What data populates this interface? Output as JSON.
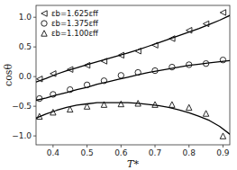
{
  "chart_data": {
    "type": "scatter",
    "xlabel": "T*",
    "ylabel": "cosθ",
    "xlim": [
      0.35,
      0.92
    ],
    "ylim": [
      -1.15,
      1.2
    ],
    "xticks": [
      0.4,
      0.5,
      0.6,
      0.7,
      0.8,
      0.9
    ],
    "yticks": [
      {
        "value": -1.0,
        "label": "−1.0"
      },
      {
        "value": -0.5,
        "label": "−0.5"
      },
      {
        "value": 0.0,
        "label": "0.0"
      },
      0.5,
      {
        "value": 1.0,
        "label": "1.0"
      }
    ],
    "grid": false,
    "legend": "upper left",
    "series": [
      {
        "name": "εb=1.625εff",
        "type": "scatter",
        "marker": "triangle-left",
        "color": "#111111",
        "x": [
          0.36,
          0.4,
          0.45,
          0.5,
          0.55,
          0.6,
          0.65,
          0.7,
          0.75,
          0.8,
          0.85,
          0.9
        ],
        "values": [
          -0.04,
          0.05,
          0.12,
          0.19,
          0.26,
          0.36,
          0.43,
          0.53,
          0.64,
          0.78,
          0.89,
          1.08
        ]
      },
      {
        "name": "εb=1.375εff",
        "type": "scatter",
        "marker": "circle",
        "color": "#111111",
        "x": [
          0.36,
          0.4,
          0.45,
          0.5,
          0.55,
          0.6,
          0.65,
          0.7,
          0.75,
          0.8,
          0.85,
          0.9
        ],
        "values": [
          -0.37,
          -0.3,
          -0.22,
          -0.14,
          -0.07,
          0.02,
          0.07,
          0.1,
          0.16,
          0.2,
          0.22,
          0.28
        ]
      },
      {
        "name": "εb=1.100εff",
        "type": "scatter",
        "marker": "triangle-up",
        "color": "#111111",
        "x": [
          0.36,
          0.4,
          0.45,
          0.5,
          0.55,
          0.6,
          0.65,
          0.7,
          0.75,
          0.8,
          0.85,
          0.9
        ],
        "values": [
          -0.67,
          -0.6,
          -0.55,
          -0.5,
          -0.47,
          -0.46,
          -0.45,
          -0.47,
          -0.47,
          -0.52,
          -0.62,
          -1.0
        ]
      },
      {
        "type": "line",
        "color": "#000000",
        "x": [
          0.35,
          0.38,
          0.41,
          0.44,
          0.47,
          0.5,
          0.53,
          0.56,
          0.59,
          0.62,
          0.65,
          0.68,
          0.71,
          0.74,
          0.77,
          0.8,
          0.83,
          0.86,
          0.89,
          0.92
        ],
        "values": [
          -0.09,
          -0.03,
          0.04,
          0.1,
          0.15,
          0.2,
          0.25,
          0.3,
          0.35,
          0.4,
          0.45,
          0.51,
          0.57,
          0.63,
          0.69,
          0.75,
          0.81,
          0.88,
          0.95,
          1.03
        ]
      },
      {
        "type": "line",
        "color": "#000000",
        "x": [
          0.35,
          0.38,
          0.41,
          0.44,
          0.47,
          0.5,
          0.53,
          0.56,
          0.59,
          0.62,
          0.65,
          0.68,
          0.71,
          0.74,
          0.77,
          0.8,
          0.83,
          0.86,
          0.89,
          0.92
        ],
        "values": [
          -0.4,
          -0.36,
          -0.31,
          -0.27,
          -0.22,
          -0.18,
          -0.13,
          -0.09,
          -0.05,
          -0.01,
          0.03,
          0.07,
          0.1,
          0.13,
          0.16,
          0.19,
          0.21,
          0.23,
          0.25,
          0.27
        ]
      },
      {
        "type": "line",
        "color": "#000000",
        "x": [
          0.35,
          0.38,
          0.41,
          0.44,
          0.47,
          0.5,
          0.53,
          0.56,
          0.59,
          0.62,
          0.65,
          0.68,
          0.71,
          0.74,
          0.77,
          0.8,
          0.83,
          0.86,
          0.89,
          0.92
        ],
        "values": [
          -0.7,
          -0.63,
          -0.57,
          -0.52,
          -0.48,
          -0.46,
          -0.44,
          -0.44,
          -0.44,
          -0.44,
          -0.45,
          -0.47,
          -0.49,
          -0.52,
          -0.56,
          -0.61,
          -0.67,
          -0.74,
          -0.84,
          -0.97
        ]
      }
    ]
  }
}
